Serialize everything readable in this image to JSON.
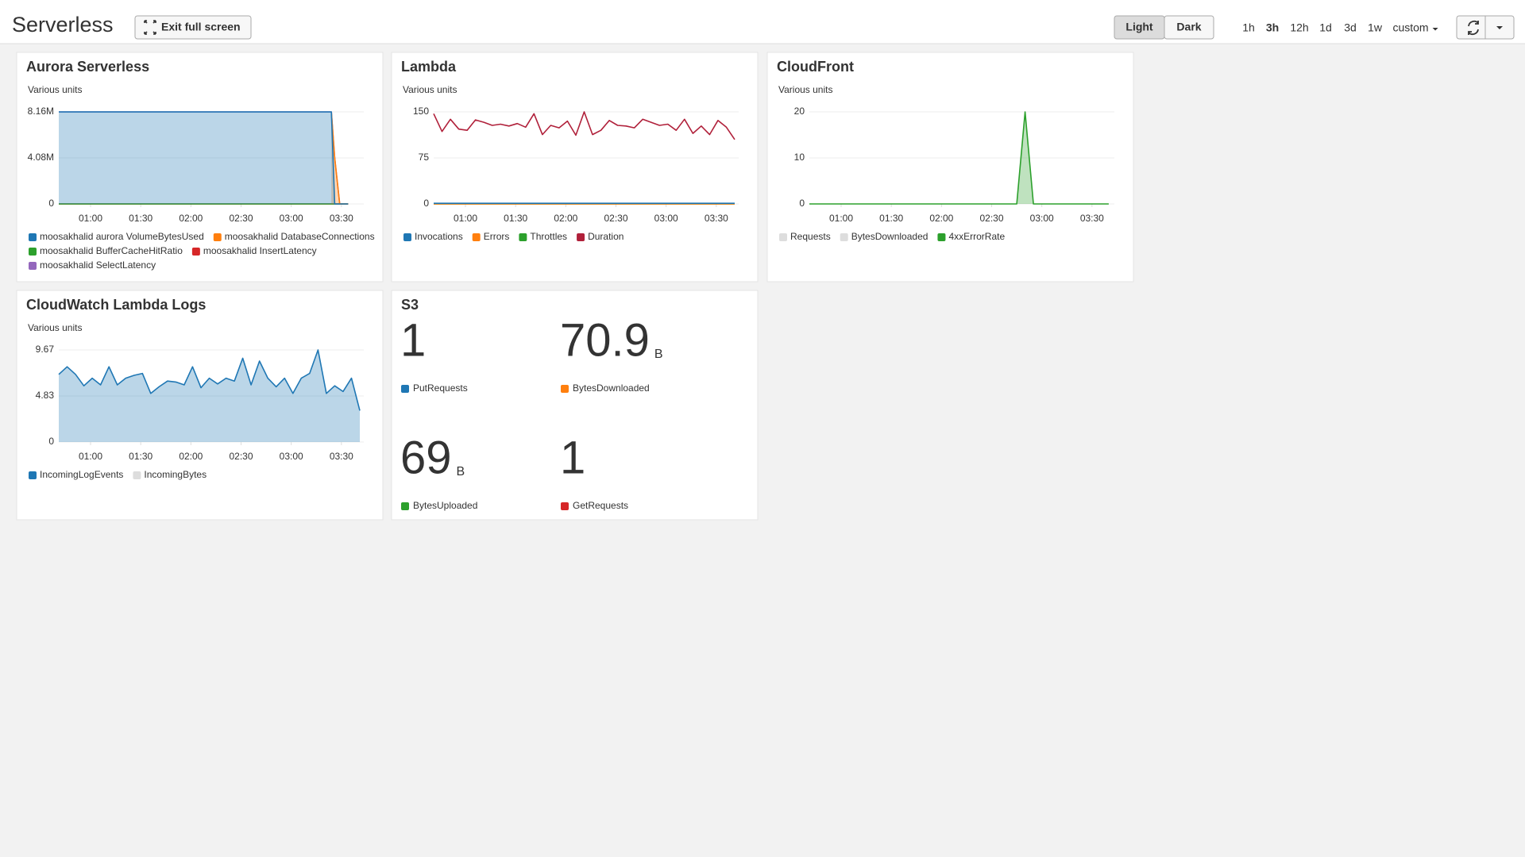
{
  "header": {
    "title": "Serverless",
    "exit_button": "Exit full screen",
    "themes": [
      "Light",
      "Dark"
    ],
    "selected_theme_index": 0,
    "time_ranges": [
      "1h",
      "3h",
      "12h",
      "1d",
      "3d",
      "1w",
      "custom"
    ],
    "selected_range_index": 1
  },
  "chart_data": [
    {
      "type": "line",
      "title": "Aurora Serverless",
      "y_label": "Various units",
      "x": [
        41,
        204,
        206,
        209,
        214
      ],
      "xlim": [
        41,
        221
      ],
      "xticks": [
        {
          "value": 60,
          "label": "01:00"
        },
        {
          "value": 90,
          "label": "01:30"
        },
        {
          "value": 120,
          "label": "02:00"
        },
        {
          "value": 150,
          "label": "02:30"
        },
        {
          "value": 180,
          "label": "03:00"
        },
        {
          "value": 210,
          "label": "03:30"
        }
      ],
      "ylim": [
        0,
        8160000
      ],
      "yticks": [
        0,
        {
          "value": 4080000,
          "label": "4.08M"
        },
        {
          "value": 8160000,
          "label": "8.16M"
        }
      ],
      "grid": true,
      "series": [
        {
          "name": "moosakhalid aurora VolumeBytesUsed",
          "color": "#1f77b4",
          "area": true,
          "values": [
            8160000,
            8160000,
            0,
            0,
            0
          ]
        },
        {
          "name": "moosakhalid DatabaseConnections",
          "color": "#ff7f0e",
          "area": true,
          "values": [
            null,
            8160000,
            4080000,
            0,
            0
          ]
        },
        {
          "name": "moosakhalid BufferCacheHitRatio",
          "color": "#2ca02c",
          "values": [
            0,
            0,
            0,
            0,
            0
          ]
        },
        {
          "name": "moosakhalid InsertLatency",
          "color": "#d62728",
          "values": [
            0,
            0,
            0,
            0,
            0
          ]
        },
        {
          "name": "moosakhalid SelectLatency",
          "color": "#9467bd",
          "values": [
            8160000,
            8160000,
            4080000,
            0,
            0
          ]
        }
      ]
    },
    {
      "type": "line",
      "title": "Lambda",
      "y_label": "Various units",
      "x": [
        41,
        46,
        51,
        56,
        61,
        66,
        71,
        76,
        81,
        86,
        91,
        96,
        101,
        106,
        111,
        116,
        121,
        126,
        131,
        136,
        141,
        146,
        151,
        156,
        161,
        166,
        171,
        176,
        181,
        186,
        191,
        196,
        201,
        206,
        211,
        216,
        221
      ],
      "xlim": [
        41,
        221
      ],
      "xticks": [
        {
          "value": 60,
          "label": "01:00"
        },
        {
          "value": 90,
          "label": "01:30"
        },
        {
          "value": 120,
          "label": "02:00"
        },
        {
          "value": 150,
          "label": "02:30"
        },
        {
          "value": 180,
          "label": "03:00"
        },
        {
          "value": 210,
          "label": "03:30"
        }
      ],
      "ylim": [
        0,
        150
      ],
      "yticks": [
        0,
        75,
        150
      ],
      "grid": true,
      "series": [
        {
          "name": "Invocations",
          "color": "#1f77b4",
          "values": [
            1,
            1,
            1,
            1,
            1,
            1,
            1,
            1,
            1,
            1,
            1,
            1,
            1,
            1,
            1,
            1,
            1,
            1,
            1,
            1,
            1,
            1,
            1,
            1,
            1,
            1,
            1,
            1,
            1,
            1,
            1,
            1,
            1,
            1,
            1,
            1,
            1
          ]
        },
        {
          "name": "Errors",
          "color": "#ff7f0e",
          "values": [
            0,
            0,
            0,
            0,
            0,
            0,
            0,
            0,
            0,
            0,
            0,
            0,
            0,
            0,
            0,
            0,
            0,
            0,
            0,
            0,
            0,
            0,
            0,
            0,
            0,
            0,
            0,
            0,
            0,
            0,
            0,
            0,
            0,
            0,
            0,
            0,
            0
          ]
        },
        {
          "name": "Throttles",
          "color": "#2ca02c",
          "values": [
            0,
            0,
            0,
            0,
            0,
            0,
            0,
            0,
            0,
            0,
            0,
            0,
            0,
            0,
            0,
            0,
            0,
            0,
            0,
            0,
            0,
            0,
            0,
            0,
            0,
            0,
            0,
            0,
            0,
            0,
            0,
            0,
            0,
            0,
            0,
            0,
            0
          ]
        },
        {
          "name": "Duration",
          "color": "#b0203a",
          "values": [
            147,
            118,
            138,
            122,
            120,
            137,
            133,
            128,
            130,
            127,
            131,
            125,
            147,
            113,
            128,
            124,
            135,
            112,
            150,
            113,
            120,
            136,
            128,
            127,
            124,
            138,
            133,
            128,
            130,
            120,
            138,
            115,
            127,
            113,
            136,
            125,
            105
          ]
        }
      ]
    },
    {
      "type": "line",
      "title": "CloudFront",
      "y_label": "Various units",
      "x": [
        41,
        165,
        170,
        175,
        220
      ],
      "xlim": [
        41,
        221
      ],
      "xticks": [
        {
          "value": 60,
          "label": "01:00"
        },
        {
          "value": 90,
          "label": "01:30"
        },
        {
          "value": 120,
          "label": "02:00"
        },
        {
          "value": 150,
          "label": "02:30"
        },
        {
          "value": 180,
          "label": "03:00"
        },
        {
          "value": 210,
          "label": "03:30"
        }
      ],
      "ylim": [
        0,
        20
      ],
      "yticks": [
        0,
        10,
        20
      ],
      "grid": true,
      "series": [
        {
          "name": "Requests",
          "color": "#dddddd",
          "visible": false
        },
        {
          "name": "BytesDownloaded",
          "color": "#dddddd",
          "visible": false
        },
        {
          "name": "4xxErrorRate",
          "color": "#2ca02c",
          "area": true,
          "values": [
            0,
            0,
            20,
            0,
            0
          ]
        }
      ]
    },
    {
      "type": "line",
      "title": "CloudWatch Lambda Logs",
      "y_label": "Various units",
      "x": [
        41,
        46,
        51,
        56,
        61,
        66,
        71,
        76,
        81,
        86,
        91,
        96,
        101,
        106,
        111,
        116,
        121,
        126,
        131,
        136,
        141,
        146,
        151,
        156,
        161,
        166,
        171,
        176,
        181,
        186,
        191,
        196,
        201,
        206,
        211,
        216,
        221
      ],
      "xlim": [
        41,
        221
      ],
      "xticks": [
        {
          "value": 60,
          "label": "01:00"
        },
        {
          "value": 90,
          "label": "01:30"
        },
        {
          "value": 120,
          "label": "02:00"
        },
        {
          "value": 150,
          "label": "02:30"
        },
        {
          "value": 180,
          "label": "03:00"
        },
        {
          "value": 210,
          "label": "03:30"
        }
      ],
      "ylim": [
        0,
        9.67
      ],
      "yticks": [
        0,
        4.83,
        9.67
      ],
      "grid": true,
      "series": [
        {
          "name": "IncomingLogEvents",
          "color": "#1f77b4",
          "area": true,
          "values": [
            7.1,
            7.9,
            7.1,
            5.9,
            6.7,
            6.0,
            7.9,
            6.0,
            6.7,
            7.0,
            7.2,
            5.1,
            5.8,
            6.4,
            6.3,
            6.0,
            7.9,
            5.7,
            6.7,
            6.1,
            6.7,
            6.4,
            8.8,
            6.0,
            8.5,
            6.7,
            5.8,
            6.7,
            5.1,
            6.7,
            7.2,
            9.67,
            5.1,
            5.9,
            5.3,
            6.7,
            3.3
          ]
        },
        {
          "name": "IncomingBytes",
          "color": "#dddddd",
          "visible": false
        }
      ]
    }
  ],
  "s3": {
    "title": "S3",
    "metrics": [
      {
        "name": "PutRequests",
        "color": "#1f77b4",
        "value": 1
      },
      {
        "name": "BytesDownloaded",
        "color": "#ff7f0e",
        "value": 70.9,
        "unit": "B"
      },
      {
        "name": "BytesUploaded",
        "color": "#2ca02c",
        "value": 69,
        "unit": "B"
      },
      {
        "name": "GetRequests",
        "color": "#d62728",
        "value": 1
      }
    ]
  }
}
